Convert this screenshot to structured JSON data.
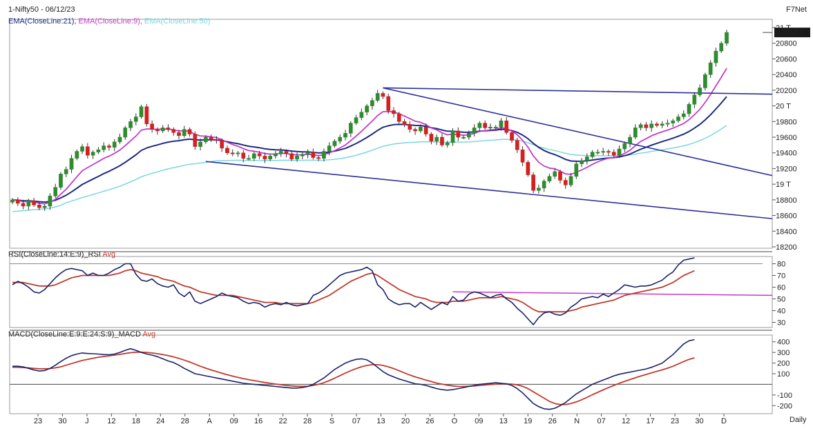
{
  "header": {
    "title": "1-Nifty50 - 06/12/23",
    "provider": "F7Net",
    "ema21_label": "EMA(CloseLine:21),",
    "ema9_label": "EMA(CloseLine:9),",
    "ema50_label": "EMA(CloseLine:50)",
    "last_price": "20937.7",
    "daily_label": "Daily"
  },
  "colors": {
    "ema21": "#1b2a80",
    "ema9": "#c33bc8",
    "ema50": "#7ad6e0",
    "bull": "#2e8b2e",
    "bear": "#d42020",
    "trendline": "#2a2f9a",
    "rsi": "#17226b",
    "rsi_avg": "#c0392b",
    "rsi_level": "#c33bc8",
    "macd": "#17226b",
    "macd_avg": "#c0392b"
  },
  "chart_data": [
    {
      "type": "candlestick",
      "name": "Nifty50 Daily",
      "ylim": [
        18200,
        21000
      ],
      "ytick_labels": [
        "21 T",
        "20800",
        "20600",
        "20400",
        "20200",
        "20 T",
        "19800",
        "19600",
        "19400",
        "19200",
        "19 T",
        "18800",
        "18600",
        "18400",
        "18200"
      ],
      "ytick_values": [
        21000,
        20800,
        20600,
        20400,
        20200,
        20000,
        19800,
        19600,
        19400,
        19200,
        19000,
        18800,
        18600,
        18400,
        18200
      ],
      "x_labels": [
        "23",
        "30",
        "J",
        "12",
        "18",
        "24",
        "28",
        "A",
        "09",
        "16",
        "22",
        "28",
        "S",
        "07",
        "13",
        "20",
        "26",
        "O",
        "09",
        "13",
        "19",
        "26",
        "N",
        "07",
        "12",
        "17",
        "23",
        "30",
        "D"
      ],
      "close": [
        18800,
        18755,
        18720,
        18790,
        18735,
        18700,
        18720,
        18850,
        18960,
        19130,
        19190,
        19330,
        19420,
        19480,
        19370,
        19410,
        19440,
        19490,
        19470,
        19540,
        19600,
        19720,
        19800,
        19860,
        19990,
        19770,
        19700,
        19680,
        19720,
        19700,
        19660,
        19620,
        19700,
        19640,
        19480,
        19540,
        19600,
        19570,
        19560,
        19460,
        19400,
        19390,
        19400,
        19330,
        19330,
        19390,
        19360,
        19320,
        19360,
        19390,
        19420,
        19390,
        19320,
        19360,
        19380,
        19410,
        19340,
        19330,
        19420,
        19490,
        19550,
        19600,
        19650,
        19780,
        19850,
        19920,
        20000,
        20070,
        20160,
        20120,
        19940,
        19900,
        19800,
        19760,
        19700,
        19680,
        19730,
        19640,
        19550,
        19600,
        19500,
        19530,
        19680,
        19600,
        19600,
        19650,
        19720,
        19780,
        19720,
        19730,
        19730,
        19810,
        19660,
        19560,
        19440,
        19280,
        19120,
        18920,
        18950,
        19040,
        19100,
        19160,
        19050,
        18990,
        19100,
        19260,
        19300,
        19350,
        19410,
        19410,
        19420,
        19410,
        19370,
        19450,
        19520,
        19600,
        19720,
        19760,
        19720,
        19770,
        19750,
        19770,
        19780,
        19810,
        19860,
        19900,
        20020,
        20140,
        20230,
        20400,
        20550,
        20700,
        20800,
        20937.7
      ]
    },
    {
      "type": "line",
      "name": "RSI(CloseLine:14:E:9)_RSI Avg",
      "ylim": [
        25,
        85
      ],
      "ytick_labels": [
        "80",
        "70",
        "60",
        "50",
        "40",
        "30"
      ],
      "ytick_values": [
        80,
        70,
        60,
        50,
        40,
        30
      ],
      "level": 56,
      "series": [
        {
          "name": "RSI",
          "values": [
            62,
            65,
            63,
            60,
            56,
            55,
            58,
            63,
            68,
            72,
            75,
            76,
            75,
            74,
            70,
            72,
            70,
            70,
            72,
            75,
            77,
            80,
            80,
            71,
            66,
            65,
            67,
            63,
            61,
            60,
            62,
            55,
            52,
            56,
            48,
            46,
            48,
            50,
            52,
            55,
            53,
            52,
            51,
            48,
            46,
            47,
            46,
            43,
            45,
            46,
            45,
            47,
            45,
            44,
            45,
            46,
            53,
            55,
            58,
            62,
            66,
            70,
            72,
            73,
            74,
            75,
            77,
            74,
            62,
            58,
            50,
            47,
            45,
            46,
            46,
            43,
            47,
            44,
            41,
            44,
            47,
            45,
            52,
            48,
            49,
            54,
            56,
            55,
            53,
            51,
            53,
            54,
            50,
            47,
            42,
            38,
            33,
            28,
            34,
            38,
            39,
            37,
            36,
            38,
            43,
            46,
            50,
            51,
            52,
            51,
            54,
            52,
            55,
            58,
            62,
            61,
            60,
            61,
            61,
            62,
            64,
            66,
            70,
            73,
            79,
            83,
            84,
            85
          ]
        },
        {
          "name": "Avg",
          "values": [
            64,
            64,
            64,
            63,
            62,
            61,
            61,
            61,
            62,
            64,
            66,
            68,
            69,
            70,
            70,
            70,
            70,
            70,
            70,
            71,
            72,
            74,
            75,
            74,
            72,
            71,
            70,
            69,
            67,
            66,
            65,
            63,
            61,
            60,
            58,
            56,
            55,
            54,
            53,
            53,
            53,
            53,
            52,
            51,
            50,
            49,
            48,
            47,
            47,
            47,
            46,
            46,
            46,
            46,
            46,
            46,
            47,
            49,
            51,
            53,
            56,
            59,
            62,
            65,
            67,
            69,
            71,
            72,
            70,
            67,
            64,
            61,
            58,
            56,
            54,
            52,
            51,
            50,
            48,
            47,
            47,
            47,
            48,
            48,
            48,
            49,
            50,
            51,
            51,
            51,
            51,
            52,
            51,
            50,
            49,
            47,
            44,
            41,
            39,
            39,
            39,
            39,
            39,
            39,
            40,
            41,
            43,
            44,
            45,
            46,
            47,
            48,
            49,
            51,
            53,
            54,
            55,
            56,
            57,
            58,
            59,
            60,
            62,
            64,
            67,
            70,
            72,
            74
          ]
        }
      ]
    },
    {
      "type": "line",
      "name": "MACD(CloseLine:E:9:E:24:S:9)_MACD Avg",
      "ylim": [
        -250,
        450
      ],
      "ytick_labels": [
        "400",
        "300",
        "200",
        "100",
        "-100",
        "-200"
      ],
      "ytick_values": [
        400,
        300,
        200,
        100,
        -100,
        -200
      ],
      "zero_line": 0,
      "series": [
        {
          "name": "MACD",
          "values": [
            170,
            170,
            165,
            150,
            135,
            125,
            130,
            150,
            180,
            215,
            245,
            270,
            285,
            295,
            290,
            288,
            285,
            280,
            278,
            285,
            300,
            320,
            335,
            320,
            300,
            285,
            275,
            260,
            240,
            220,
            205,
            180,
            150,
            125,
            100,
            90,
            80,
            70,
            60,
            50,
            40,
            30,
            20,
            10,
            5,
            0,
            -5,
            -10,
            -15,
            -20,
            -25,
            -30,
            -35,
            -35,
            -30,
            -20,
            0,
            30,
            60,
            100,
            140,
            170,
            200,
            220,
            235,
            240,
            230,
            200,
            160,
            120,
            90,
            70,
            50,
            35,
            20,
            5,
            0,
            -10,
            -25,
            -40,
            -50,
            -55,
            -50,
            -40,
            -30,
            -20,
            -10,
            0,
            5,
            10,
            15,
            10,
            5,
            -10,
            -40,
            -80,
            -130,
            -180,
            -210,
            -230,
            -235,
            -225,
            -200,
            -170,
            -130,
            -90,
            -60,
            -30,
            0,
            20,
            40,
            60,
            80,
            95,
            105,
            115,
            125,
            135,
            145,
            160,
            180,
            200,
            240,
            280,
            330,
            380,
            410,
            420
          ]
        },
        {
          "name": "Avg",
          "values": [
            160,
            160,
            158,
            155,
            150,
            146,
            146,
            148,
            155,
            165,
            180,
            195,
            210,
            225,
            235,
            245,
            255,
            262,
            268,
            275,
            282,
            290,
            298,
            302,
            302,
            300,
            295,
            288,
            280,
            270,
            258,
            244,
            228,
            210,
            190,
            170,
            152,
            135,
            120,
            105,
            90,
            77,
            65,
            54,
            44,
            35,
            26,
            18,
            10,
            3,
            -4,
            -10,
            -15,
            -18,
            -19,
            -17,
            -10,
            0,
            15,
            35,
            58,
            82,
            106,
            128,
            148,
            165,
            178,
            185,
            185,
            178,
            165,
            148,
            128,
            108,
            88,
            70,
            55,
            40,
            26,
            12,
            2,
            -8,
            -15,
            -20,
            -20,
            -18,
            -15,
            -10,
            -6,
            -2,
            2,
            4,
            4,
            2,
            -5,
            -18,
            -40,
            -70,
            -100,
            -130,
            -160,
            -180,
            -190,
            -190,
            -180,
            -165,
            -145,
            -122,
            -98,
            -75,
            -52,
            -30,
            -10,
            10,
            28,
            45,
            62,
            78,
            93,
            108,
            122,
            136,
            152,
            170,
            192,
            215,
            235,
            250
          ]
        }
      ]
    }
  ]
}
